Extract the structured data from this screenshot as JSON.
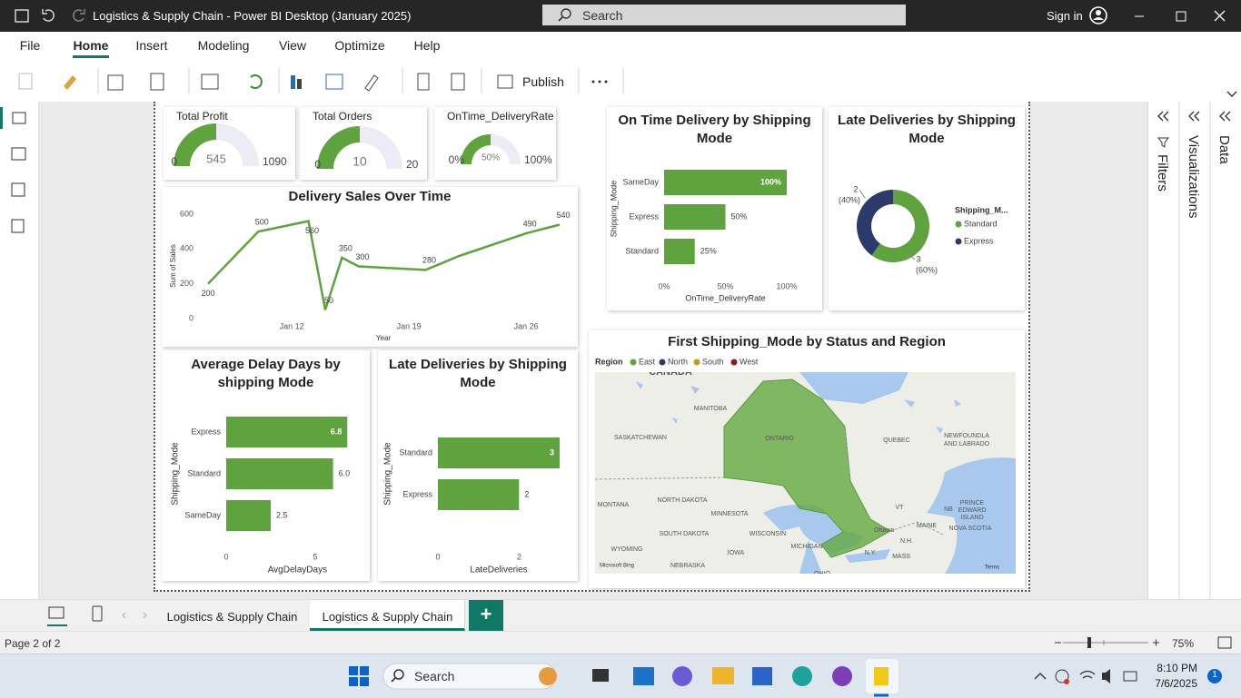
{
  "app": {
    "window_title": "Logistics & Supply Chain - Power BI Desktop (January 2025)",
    "search": "Search",
    "sign_in": "Sign in",
    "menu": [
      "File",
      "Home",
      "Insert",
      "Modeling",
      "View",
      "Optimize",
      "Help"
    ],
    "active_menu": 1,
    "publish": "Publish",
    "panes": [
      "Filters",
      "Visualizations",
      "Data"
    ]
  },
  "report": {
    "gauges": [
      {
        "title": "Total Profit",
        "min": 0,
        "max": 1090,
        "value": 545
      },
      {
        "title": "Total Orders",
        "min": 0,
        "max": 20,
        "value": 10
      },
      {
        "title": "OnTime_DeliveryRate",
        "min": {
          "value": 0,
          "label": "0%"
        },
        "max": {
          "value": 100,
          "label": "100%"
        },
        "value": {
          "value": 50,
          "label": "50%"
        }
      }
    ],
    "gauge_color": "#5ea33d",
    "charts": [
      {
        "type": "line",
        "title": "Delivery Sales Over Time",
        "x_label": "Year",
        "y_label": "Sum of Sales",
        "x": [
          7,
          10,
          13,
          14,
          15,
          16,
          20,
          22,
          26,
          28
        ],
        "values": [
          200,
          500,
          560,
          50,
          350,
          300,
          280,
          360,
          490,
          540
        ],
        "value_labels": [
          "200",
          "500",
          "560",
          "50",
          "350",
          "300",
          "280",
          null,
          "490",
          "540"
        ],
        "xlim": [
          7,
          28
        ],
        "xticks": [
          {
            "value": 12,
            "label": "Jan 12"
          },
          {
            "value": 19,
            "label": "Jan 19"
          },
          {
            "value": 26,
            "label": "Jan 26"
          }
        ],
        "ylim": [
          0,
          600
        ],
        "yticks": [
          0,
          200,
          400,
          600
        ],
        "color": "#5ea33d"
      },
      {
        "type": "hbar",
        "title": "On Time Delivery by Shipping Mode",
        "x_label": "OnTime_DeliveryRate",
        "y_label": "Shipping_Mode",
        "categories": [
          "SameDay",
          "Express",
          "Standard"
        ],
        "values": [
          100,
          50,
          25
        ],
        "value_labels": [
          "100%",
          "50%",
          "25%"
        ],
        "xlim": [
          0,
          100
        ],
        "xticks": [
          {
            "value": 0,
            "label": "0%"
          },
          {
            "value": 50,
            "label": "50%"
          },
          {
            "value": 100,
            "label": "100%"
          }
        ],
        "color": "#5ea33d"
      },
      {
        "type": "donut",
        "title": "Late Deliveries by Shipping Mode",
        "legend_title": "Shipping_M...",
        "categories": [
          "Standard",
          "Express"
        ],
        "values": [
          3,
          2
        ],
        "percent_values": [
          60,
          40
        ],
        "percent_labels": [
          "(60%)",
          "(40%)"
        ],
        "colors": [
          "#5ea33d",
          "#2b3a6b"
        ]
      },
      {
        "type": "hbar",
        "title": "Average Delay Days by shipping Mode",
        "x_label": "AvgDelayDays",
        "y_label": "Shipping_Mode",
        "categories": [
          "Express",
          "Standard",
          "SameDay"
        ],
        "values": [
          6.8,
          6.0,
          2.5
        ],
        "value_labels": [
          "6.8",
          "6.0",
          "2.5"
        ],
        "xlim": [
          0,
          8
        ],
        "xticks": [
          0,
          5
        ],
        "color": "#5ea33d"
      },
      {
        "type": "hbar",
        "title": "Late Deliveries by Shipping Mode",
        "x_label": "LateDeliveries",
        "y_label": "Shipping_Mode",
        "categories": [
          "Standard",
          "Express"
        ],
        "values": [
          3,
          2
        ],
        "xlim": [
          0,
          3
        ],
        "xticks": [
          0,
          2
        ],
        "color": "#5ea33d"
      },
      {
        "type": "map",
        "title": "First Shipping_Mode by Status and Region",
        "legend_title": "Region",
        "legend": [
          {
            "name": "East",
            "color": "#5ea33d"
          },
          {
            "name": "North",
            "color": "#2b3a6b"
          },
          {
            "name": "South",
            "color": "#c39b1f"
          },
          {
            "name": "West",
            "color": "#8b1c1c"
          }
        ],
        "places": [
          "CANADA",
          "MANITOBA",
          "SASKATCHEWAN",
          "ONTARIO",
          "QUEBEC",
          "NEWFOUNDLA",
          "AND LABRADO",
          "MONTANA",
          "NORTH DAKOTA",
          "MINNESOTA",
          "SOUTH DAKOTA",
          "WISCONSIN",
          "MICHIGAN",
          "IOWA",
          "NEBRASKA",
          "WYOMING",
          "Ottawa",
          "N.Y.",
          "MAINE",
          "NB",
          "PRINCE",
          "EDWARD",
          "ISLAND",
          "NOVA SCOTIA",
          "VT",
          "N.H.",
          "MASS",
          "OHIO"
        ],
        "attribution": "Microsoft Bing",
        "terms": "Terms"
      }
    ]
  },
  "pages": {
    "tabs": [
      "Logistics & Supply Chain",
      "Logistics & Supply Chain"
    ],
    "active_tab": 1,
    "status": "Page 2 of 2",
    "zoom": "75%"
  },
  "taskbar": {
    "search": "Search",
    "time": "8:10 PM",
    "date": "7/6/2025",
    "badge": "1"
  }
}
